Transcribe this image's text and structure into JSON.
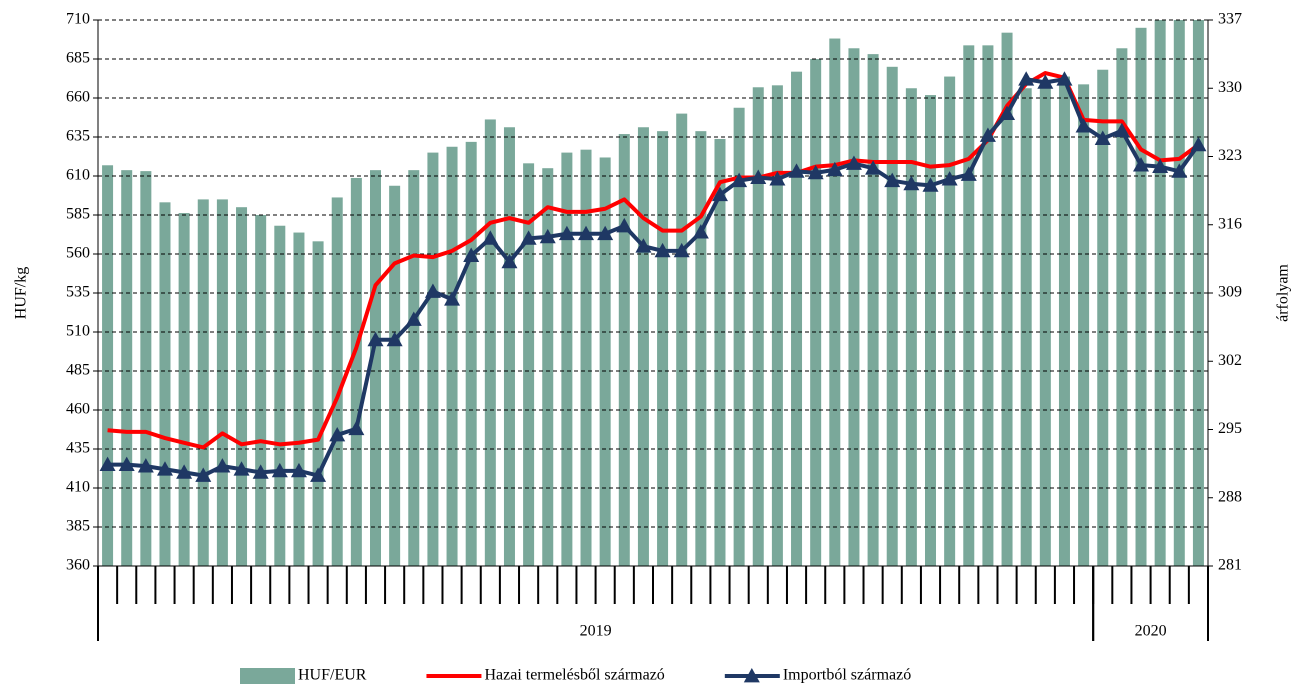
{
  "chart_data": {
    "type": "bar_line",
    "ylabel": "HUF/kg",
    "y2label": "árfolyam",
    "ylim": [
      360,
      710
    ],
    "yticks": [
      360,
      385,
      410,
      435,
      460,
      485,
      510,
      535,
      560,
      585,
      610,
      635,
      660,
      685,
      710
    ],
    "y2lim": [
      281,
      337
    ],
    "y2ticks": [
      281,
      288,
      295,
      302,
      309,
      316,
      323,
      330,
      337
    ],
    "grid": true,
    "legend": "bottom",
    "categories": [
      null,
      null,
      null,
      null,
      null,
      null,
      null,
      null,
      null,
      null,
      null,
      null,
      null,
      null,
      null,
      null,
      null,
      null,
      null,
      null,
      null,
      null,
      null,
      null,
      null,
      null,
      null,
      null,
      null,
      null,
      null,
      null,
      null,
      null,
      null,
      null,
      null,
      null,
      null,
      null,
      null,
      null,
      null,
      null,
      null,
      null,
      null,
      null,
      null,
      null,
      null,
      null,
      null,
      null,
      null,
      null,
      null,
      null
    ],
    "year_groups": [
      {
        "label": "2019",
        "count": 52
      },
      {
        "label": "2020",
        "count": 6
      }
    ],
    "series": [
      {
        "name": "HUF/EUR",
        "type": "bar",
        "axis": "y2",
        "color": "#7aa89a",
        "values": [
          322.1,
          321.6,
          321.5,
          318.3,
          317.2,
          318.6,
          318.6,
          317.8,
          317.0,
          315.9,
          315.2,
          314.3,
          318.8,
          320.8,
          321.6,
          320.0,
          321.6,
          323.4,
          324.0,
          324.5,
          326.8,
          326.0,
          322.3,
          321.8,
          323.4,
          323.7,
          322.9,
          325.3,
          326.0,
          325.6,
          327.4,
          325.6,
          324.8,
          328.0,
          330.1,
          330.3,
          331.7,
          333.0,
          335.1,
          334.1,
          333.5,
          332.2,
          330.0,
          329.3,
          331.2,
          334.4,
          334.4,
          335.7,
          330.0,
          330.6,
          331.2,
          330.4,
          331.9,
          334.1,
          336.2,
          337.0,
          337.0,
          337.0
        ]
      },
      {
        "name": "Hazai termelésből származó",
        "type": "line",
        "color": "#ff0000",
        "values": [
          447,
          446,
          446,
          442,
          439,
          436,
          445,
          438,
          440,
          438,
          439,
          441,
          468,
          500,
          540,
          554,
          559,
          558,
          562,
          569,
          580,
          583,
          580,
          590,
          587,
          587,
          589,
          595,
          583,
          575,
          575,
          584,
          606,
          609,
          609,
          612,
          612,
          616,
          617,
          620,
          619,
          619,
          619,
          616,
          617,
          621,
          633,
          655,
          669,
          676,
          673,
          646,
          645,
          645,
          627,
          620,
          621,
          630
        ]
      },
      {
        "name": "Importból származó",
        "type": "line",
        "marker": "triangle",
        "color": "#1f3864",
        "values": [
          425,
          425,
          424,
          422,
          420,
          418,
          424,
          422,
          420,
          421,
          421,
          418,
          444,
          448,
          505,
          505,
          518,
          536,
          531,
          559,
          570,
          555,
          570,
          571,
          573,
          573,
          573,
          578,
          565,
          562,
          562,
          574,
          598,
          607,
          609,
          608,
          613,
          612,
          614,
          618,
          615,
          607,
          605,
          604,
          608,
          611,
          636,
          650,
          672,
          670,
          672,
          642,
          634,
          639,
          617,
          616,
          613,
          630
        ]
      }
    ]
  }
}
